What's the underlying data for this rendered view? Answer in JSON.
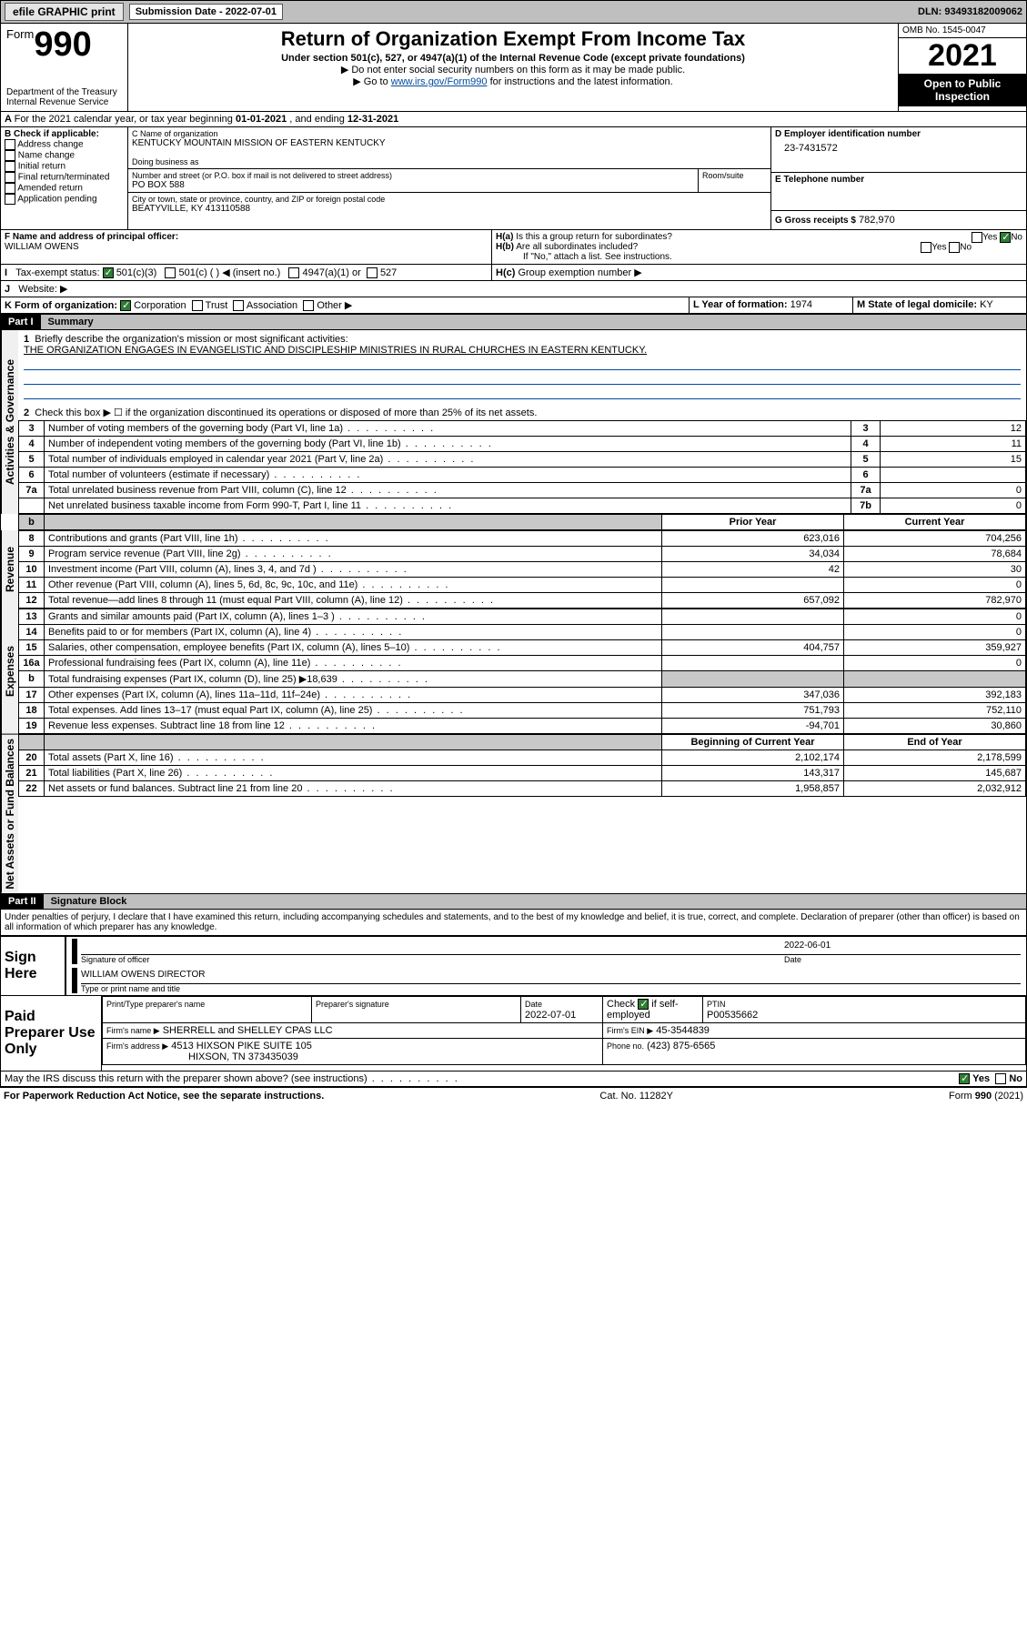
{
  "topbar": {
    "efile": "efile GRAPHIC print",
    "sub_label": "Submission Date - 2022-07-01",
    "dln": "DLN: 93493182009062"
  },
  "header": {
    "form_word": "Form",
    "form_no": "990",
    "dept": "Department of the Treasury",
    "irs": "Internal Revenue Service",
    "title": "Return of Organization Exempt From Income Tax",
    "sub1": "Under section 501(c), 527, or 4947(a)(1) of the Internal Revenue Code (except private foundations)",
    "sub2": "▶ Do not enter social security numbers on this form as it may be made public.",
    "sub3_pre": "▶ Go to ",
    "sub3_link": "www.irs.gov/Form990",
    "sub3_post": " for instructions and the latest information.",
    "omb": "OMB No. 1545-0047",
    "year": "2021",
    "open": "Open to Public Inspection"
  },
  "A": {
    "text_pre": "For the 2021 calendar year, or tax year beginning ",
    "begin": "01-01-2021",
    "mid": " , and ending ",
    "end": "12-31-2021"
  },
  "B": {
    "label": "B Check if applicable:",
    "opts": [
      "Address change",
      "Name change",
      "Initial return",
      "Final return/terminated",
      "Amended return",
      "Application pending"
    ]
  },
  "C": {
    "label": "C Name of organization",
    "org": "KENTUCKY MOUNTAIN MISSION OF EASTERN KENTUCKY",
    "dba_label": "Doing business as",
    "addr_label": "Number and street (or P.O. box if mail is not delivered to street address)",
    "room_label": "Room/suite",
    "addr": "PO BOX 588",
    "city_label": "City or town, state or province, country, and ZIP or foreign postal code",
    "city": "BEATYVILLE, KY  413110588"
  },
  "D": {
    "label": "D Employer identification number",
    "val": "23-7431572"
  },
  "E": {
    "label": "E Telephone number",
    "val": ""
  },
  "G": {
    "label": "G Gross receipts $",
    "val": "782,970"
  },
  "F": {
    "label": "F Name and address of principal officer:",
    "name": "WILLIAM OWENS"
  },
  "H": {
    "a": "Is this a group return for subordinates?",
    "b": "Are all subordinates included?",
    "b_note": "If \"No,\" attach a list. See instructions.",
    "c": "Group exemption number ▶",
    "yes": "Yes",
    "no": "No"
  },
  "I": {
    "label": "Tax-exempt status:",
    "o1": "501(c)(3)",
    "o2": "501(c) (   ) ◀ (insert no.)",
    "o3": "4947(a)(1) or",
    "o4": "527"
  },
  "J": {
    "label": "Website: ▶"
  },
  "K": {
    "label": "K Form of organization:",
    "o1": "Corporation",
    "o2": "Trust",
    "o3": "Association",
    "o4": "Other ▶"
  },
  "L": {
    "label": "L Year of formation:",
    "val": "1974"
  },
  "M": {
    "label": "M State of legal domicile:",
    "val": "KY"
  },
  "part1": {
    "hdr": "Part I",
    "title": "Summary",
    "l1_label": "Briefly describe the organization's mission or most significant activities:",
    "l1_text": "THE ORGANIZATION ENGAGES IN EVANGELISTIC AND DISCIPLESHIP MINISTRIES IN RURAL CHURCHES IN EASTERN KENTUCKY.",
    "l2": "Check this box ▶ ☐  if the organization discontinued its operations or disposed of more than 25% of its net assets.",
    "gov_vert": "Activities & Governance",
    "rev_vert": "Revenue",
    "exp_vert": "Expenses",
    "na_vert": "Net Assets or Fund Balances",
    "prior_hdr": "Prior Year",
    "curr_hdr": "Current Year",
    "boy_hdr": "Beginning of Current Year",
    "eoy_hdr": "End of Year",
    "rows_top": [
      {
        "n": "3",
        "t": "Number of voting members of the governing body (Part VI, line 1a)",
        "r": "3",
        "v": "12"
      },
      {
        "n": "4",
        "t": "Number of independent voting members of the governing body (Part VI, line 1b)",
        "r": "4",
        "v": "11"
      },
      {
        "n": "5",
        "t": "Total number of individuals employed in calendar year 2021 (Part V, line 2a)",
        "r": "5",
        "v": "15"
      },
      {
        "n": "6",
        "t": "Total number of volunteers (estimate if necessary)",
        "r": "6",
        "v": ""
      },
      {
        "n": "7a",
        "t": "Total unrelated business revenue from Part VIII, column (C), line 12",
        "r": "7a",
        "v": "0"
      },
      {
        "n": "",
        "t": "Net unrelated business taxable income from Form 990-T, Part I, line 11",
        "r": "7b",
        "v": "0"
      }
    ],
    "rows_rev": [
      {
        "n": "8",
        "t": "Contributions and grants (Part VIII, line 1h)",
        "p": "623,016",
        "c": "704,256"
      },
      {
        "n": "9",
        "t": "Program service revenue (Part VIII, line 2g)",
        "p": "34,034",
        "c": "78,684"
      },
      {
        "n": "10",
        "t": "Investment income (Part VIII, column (A), lines 3, 4, and 7d )",
        "p": "42",
        "c": "30"
      },
      {
        "n": "11",
        "t": "Other revenue (Part VIII, column (A), lines 5, 6d, 8c, 9c, 10c, and 11e)",
        "p": "",
        "c": "0"
      },
      {
        "n": "12",
        "t": "Total revenue—add lines 8 through 11 (must equal Part VIII, column (A), line 12)",
        "p": "657,092",
        "c": "782,970"
      }
    ],
    "rows_exp": [
      {
        "n": "13",
        "t": "Grants and similar amounts paid (Part IX, column (A), lines 1–3 )",
        "p": "",
        "c": "0"
      },
      {
        "n": "14",
        "t": "Benefits paid to or for members (Part IX, column (A), line 4)",
        "p": "",
        "c": "0"
      },
      {
        "n": "15",
        "t": "Salaries, other compensation, employee benefits (Part IX, column (A), lines 5–10)",
        "p": "404,757",
        "c": "359,927"
      },
      {
        "n": "16a",
        "t": "Professional fundraising fees (Part IX, column (A), line 11e)",
        "p": "",
        "c": "0"
      },
      {
        "n": "b",
        "t": "Total fundraising expenses (Part IX, column (D), line 25) ▶18,639",
        "p": "__shade__",
        "c": "__shade__"
      },
      {
        "n": "17",
        "t": "Other expenses (Part IX, column (A), lines 11a–11d, 11f–24e)",
        "p": "347,036",
        "c": "392,183"
      },
      {
        "n": "18",
        "t": "Total expenses. Add lines 13–17 (must equal Part IX, column (A), line 25)",
        "p": "751,793",
        "c": "752,110"
      },
      {
        "n": "19",
        "t": "Revenue less expenses. Subtract line 18 from line 12",
        "p": "-94,701",
        "c": "30,860"
      }
    ],
    "rows_na": [
      {
        "n": "20",
        "t": "Total assets (Part X, line 16)",
        "p": "2,102,174",
        "c": "2,178,599"
      },
      {
        "n": "21",
        "t": "Total liabilities (Part X, line 26)",
        "p": "143,317",
        "c": "145,687"
      },
      {
        "n": "22",
        "t": "Net assets or fund balances. Subtract line 21 from line 20",
        "p": "1,958,857",
        "c": "2,032,912"
      }
    ]
  },
  "part2": {
    "hdr": "Part II",
    "title": "Signature Block",
    "decl": "Under penalties of perjury, I declare that I have examined this return, including accompanying schedules and statements, and to the best of my knowledge and belief, it is true, correct, and complete. Declaration of preparer (other than officer) is based on all information of which preparer has any knowledge.",
    "sign_here": "Sign Here",
    "sig_officer": "Signature of officer",
    "sig_date": "Date",
    "sig_date_val": "2022-06-01",
    "sig_name": "WILLIAM OWENS  DIRECTOR",
    "sig_name_label": "Type or print name and title",
    "paid": "Paid Preparer Use Only",
    "p_col1": "Print/Type preparer's name",
    "p_col2": "Preparer's signature",
    "p_col3": "Date",
    "p_date": "2022-07-01",
    "p_check": "Check ☑ if self-employed",
    "p_ptin_l": "PTIN",
    "p_ptin": "P00535662",
    "firm_name_l": "Firm's name    ▶",
    "firm_name": "SHERRELL and SHELLEY CPAS LLC",
    "firm_ein_l": "Firm's EIN ▶",
    "firm_ein": "45-3544839",
    "firm_addr_l": "Firm's address ▶",
    "firm_addr1": "4513 HIXSON PIKE SUITE 105",
    "firm_addr2": "HIXSON, TN  373435039",
    "firm_phone_l": "Phone no.",
    "firm_phone": "(423) 875-6565",
    "may_irs": "May the IRS discuss this return with the preparer shown above? (see instructions)"
  },
  "footer": {
    "l": "For Paperwork Reduction Act Notice, see the separate instructions.",
    "c": "Cat. No. 11282Y",
    "r": "Form 990 (2021)"
  },
  "colors": {
    "link": "#004b9e",
    "grey": "#bfbfbf",
    "green": "#2f7d32"
  }
}
